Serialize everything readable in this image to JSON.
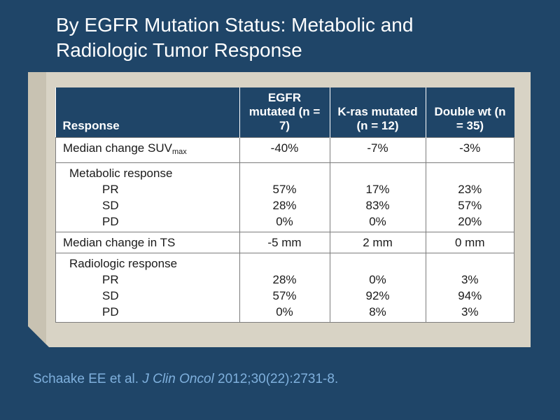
{
  "slide": {
    "title_line1": "By EGFR Mutation Status: Metabolic and",
    "title_line2": "Radiologic Tumor Response"
  },
  "table": {
    "headers": {
      "response": "Response",
      "egfr": [
        "EGFR",
        "mutated",
        "(n = 7)"
      ],
      "kras": [
        "K-ras",
        "mutated",
        "(n = 12)"
      ],
      "double": [
        "Double wt",
        "(n = 35)"
      ]
    },
    "median_suv": {
      "label": "Median change SUV",
      "label_sub": "max",
      "egfr": "-40%",
      "kras": "-7%",
      "double": "-3%"
    },
    "metabolic": {
      "label": "Metabolic response",
      "items": [
        {
          "label": "PR",
          "egfr": "57%",
          "kras": "17%",
          "double": "23%"
        },
        {
          "label": "SD",
          "egfr": "28%",
          "kras": "83%",
          "double": "57%"
        },
        {
          "label": "PD",
          "egfr": "0%",
          "kras": "0%",
          "double": "20%"
        }
      ]
    },
    "median_ts": {
      "label": "Median change in TS",
      "egfr": "-5 mm",
      "kras": "2 mm",
      "double": "0 mm"
    },
    "radiologic": {
      "label": "Radiologic response",
      "items": [
        {
          "label": "PR",
          "egfr": "28%",
          "kras": "0%",
          "double": "3%"
        },
        {
          "label": "SD",
          "egfr": "57%",
          "kras": "92%",
          "double": "94%"
        },
        {
          "label": "PD",
          "egfr": "0%",
          "kras": "8%",
          "double": "3%"
        }
      ]
    }
  },
  "citation": {
    "authors": "Schaake EE et al.",
    "journal": "J Clin Oncol",
    "ref": "2012;30(22):2731-8."
  }
}
